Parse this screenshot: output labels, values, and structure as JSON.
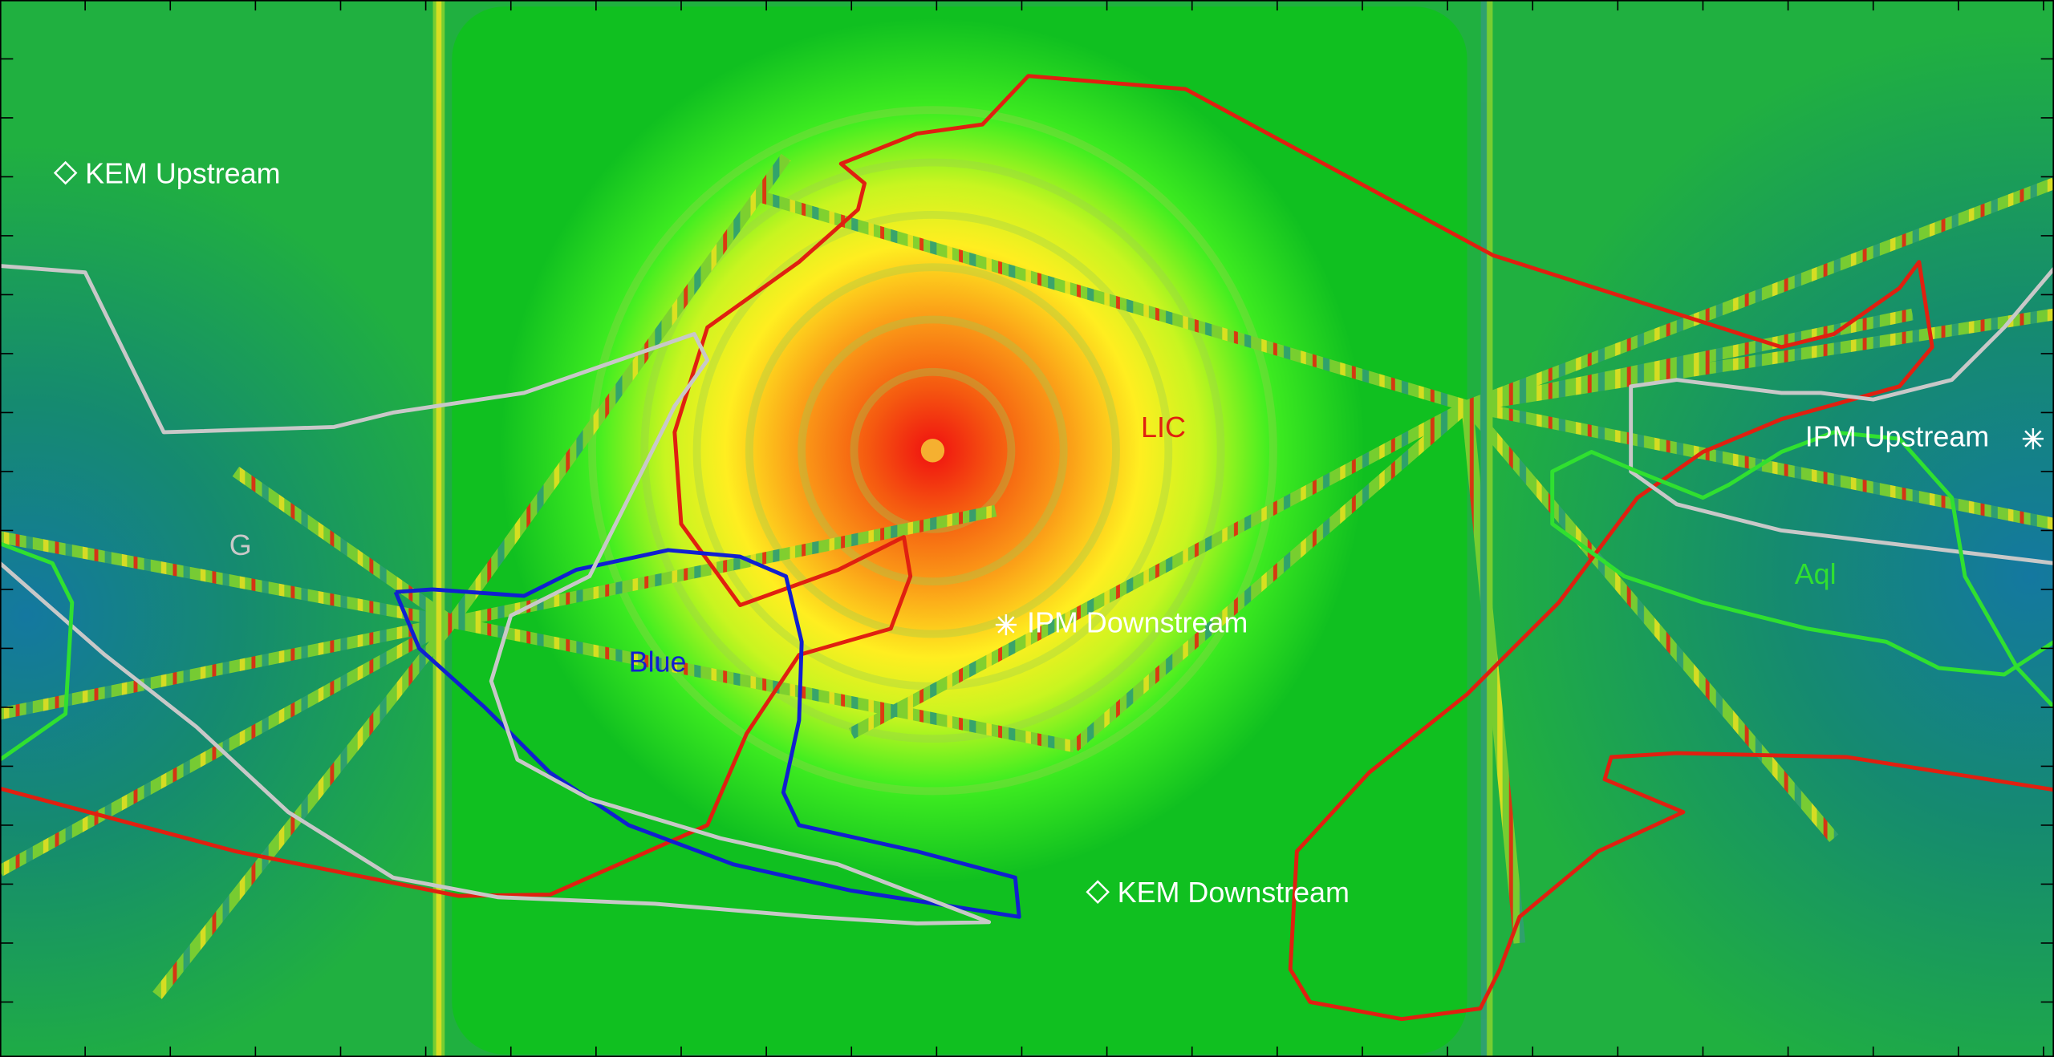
{
  "labels": {
    "kem_upstream": "KEM Upstream",
    "ipm_upstream": "IPM Upstream",
    "ipm_downstream": "IPM Downstream",
    "kem_downstream": "KEM Downstream",
    "lic": "LIC",
    "blue": "Blue",
    "g": "G",
    "aql": "Aql"
  }
}
